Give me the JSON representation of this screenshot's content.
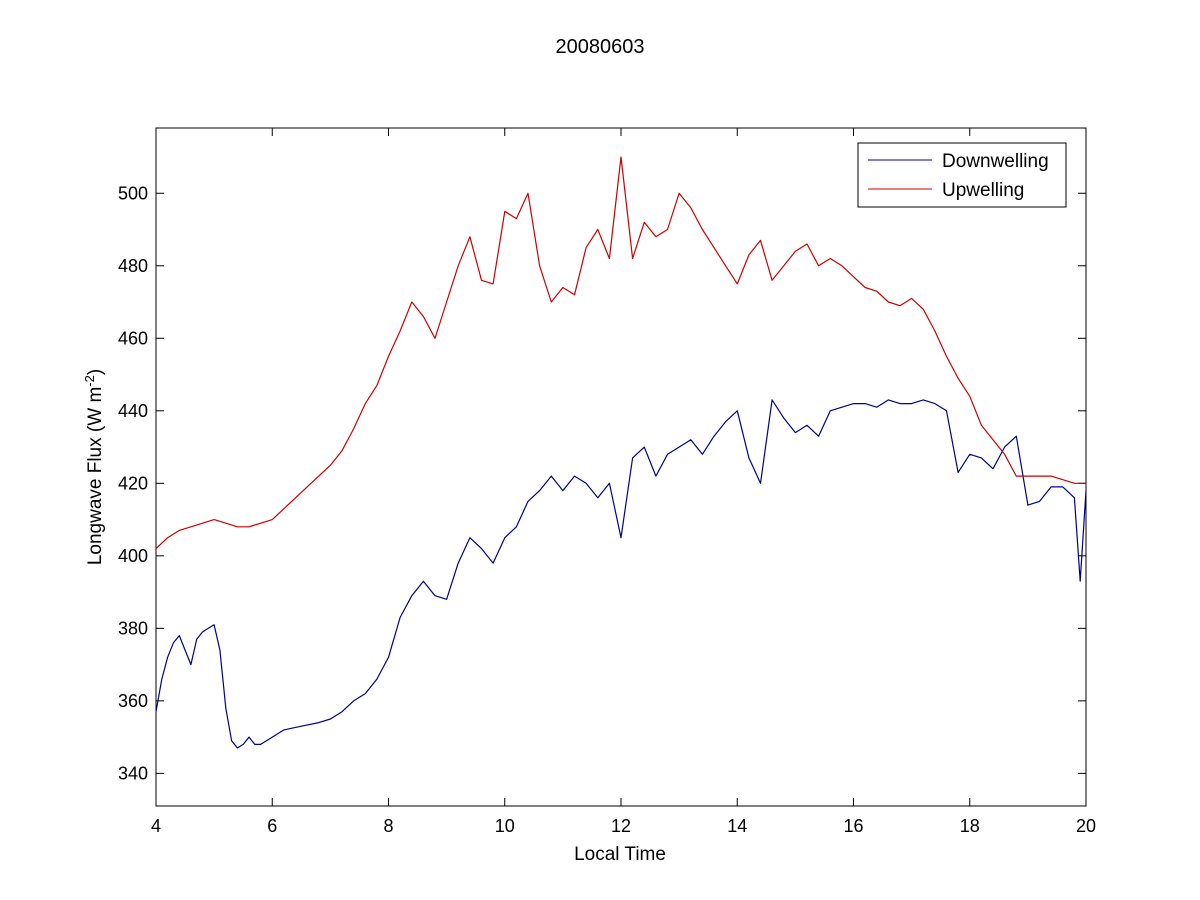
{
  "chart_data": {
    "type": "line",
    "title": "20080603",
    "xlabel": "Local Time",
    "ylabel": "Longwave Flux (W m",
    "ylabel_sup": "-2",
    "ylabel_close": ")",
    "xlim": [
      4,
      20
    ],
    "ylim": [
      331,
      518
    ],
    "xticks": [
      4,
      6,
      8,
      10,
      12,
      14,
      16,
      18,
      20
    ],
    "yticks": [
      340,
      360,
      380,
      400,
      420,
      440,
      460,
      480,
      500
    ],
    "grid": false,
    "legend_position": "top-right",
    "series": [
      {
        "name": "Downwelling",
        "color": "#00008B",
        "x": [
          4.0,
          4.1,
          4.2,
          4.3,
          4.4,
          4.5,
          4.6,
          4.7,
          4.8,
          4.9,
          5.0,
          5.1,
          5.2,
          5.3,
          5.4,
          5.5,
          5.6,
          5.7,
          5.8,
          6.0,
          6.2,
          6.5,
          6.8,
          7.0,
          7.2,
          7.4,
          7.6,
          7.8,
          8.0,
          8.2,
          8.4,
          8.6,
          8.8,
          9.0,
          9.2,
          9.4,
          9.6,
          9.8,
          10.0,
          10.2,
          10.4,
          10.6,
          10.8,
          11.0,
          11.2,
          11.4,
          11.6,
          11.8,
          12.0,
          12.2,
          12.4,
          12.6,
          12.8,
          13.0,
          13.2,
          13.4,
          13.6,
          13.8,
          14.0,
          14.2,
          14.4,
          14.6,
          14.8,
          15.0,
          15.2,
          15.4,
          15.6,
          15.8,
          16.0,
          16.2,
          16.4,
          16.6,
          16.8,
          17.0,
          17.2,
          17.4,
          17.6,
          17.8,
          18.0,
          18.2,
          18.4,
          18.6,
          18.8,
          19.0,
          19.2,
          19.4,
          19.6,
          19.8,
          19.9,
          20.0
        ],
        "values": [
          357,
          366,
          372,
          376,
          378,
          374,
          370,
          377,
          379,
          380,
          381,
          374,
          358,
          349,
          347,
          348,
          350,
          348,
          348,
          350,
          352,
          353,
          354,
          355,
          357,
          360,
          362,
          366,
          372,
          383,
          389,
          393,
          389,
          388,
          398,
          405,
          402,
          398,
          405,
          408,
          415,
          418,
          422,
          418,
          422,
          420,
          416,
          420,
          405,
          427,
          430,
          422,
          428,
          430,
          432,
          428,
          433,
          437,
          440,
          427,
          420,
          443,
          438,
          434,
          436,
          433,
          440,
          441,
          442,
          442,
          441,
          443,
          442,
          442,
          443,
          442,
          440,
          423,
          428,
          427,
          424,
          430,
          433,
          414,
          415,
          419,
          419,
          416,
          393,
          418
        ]
      },
      {
        "name": "Upwelling",
        "color": "#CC0000",
        "x": [
          4.0,
          4.2,
          4.4,
          4.6,
          4.8,
          5.0,
          5.2,
          5.4,
          5.6,
          5.8,
          6.0,
          6.2,
          6.4,
          6.6,
          6.8,
          7.0,
          7.2,
          7.4,
          7.6,
          7.8,
          8.0,
          8.2,
          8.4,
          8.6,
          8.8,
          9.0,
          9.2,
          9.4,
          9.6,
          9.8,
          10.0,
          10.2,
          10.4,
          10.6,
          10.8,
          11.0,
          11.2,
          11.4,
          11.6,
          11.8,
          12.0,
          12.2,
          12.4,
          12.6,
          12.8,
          13.0,
          13.2,
          13.4,
          13.6,
          13.8,
          14.0,
          14.2,
          14.4,
          14.6,
          14.8,
          15.0,
          15.2,
          15.4,
          15.6,
          15.8,
          16.0,
          16.2,
          16.4,
          16.6,
          16.8,
          17.0,
          17.2,
          17.4,
          17.6,
          17.8,
          18.0,
          18.2,
          18.4,
          18.6,
          18.8,
          19.0,
          19.2,
          19.4,
          19.6,
          19.8,
          20.0
        ],
        "values": [
          402,
          405,
          407,
          408,
          409,
          410,
          409,
          408,
          408,
          409,
          410,
          413,
          416,
          419,
          422,
          425,
          429,
          435,
          442,
          447,
          455,
          462,
          470,
          466,
          460,
          470,
          480,
          488,
          476,
          475,
          495,
          493,
          500,
          480,
          470,
          474,
          472,
          485,
          490,
          482,
          510,
          482,
          492,
          488,
          490,
          500,
          496,
          490,
          485,
          480,
          475,
          483,
          487,
          476,
          480,
          484,
          486,
          480,
          482,
          480,
          477,
          474,
          473,
          470,
          469,
          471,
          468,
          462,
          455,
          449,
          444,
          436,
          432,
          428,
          422,
          422,
          422,
          422,
          421,
          420,
          420
        ]
      }
    ]
  }
}
